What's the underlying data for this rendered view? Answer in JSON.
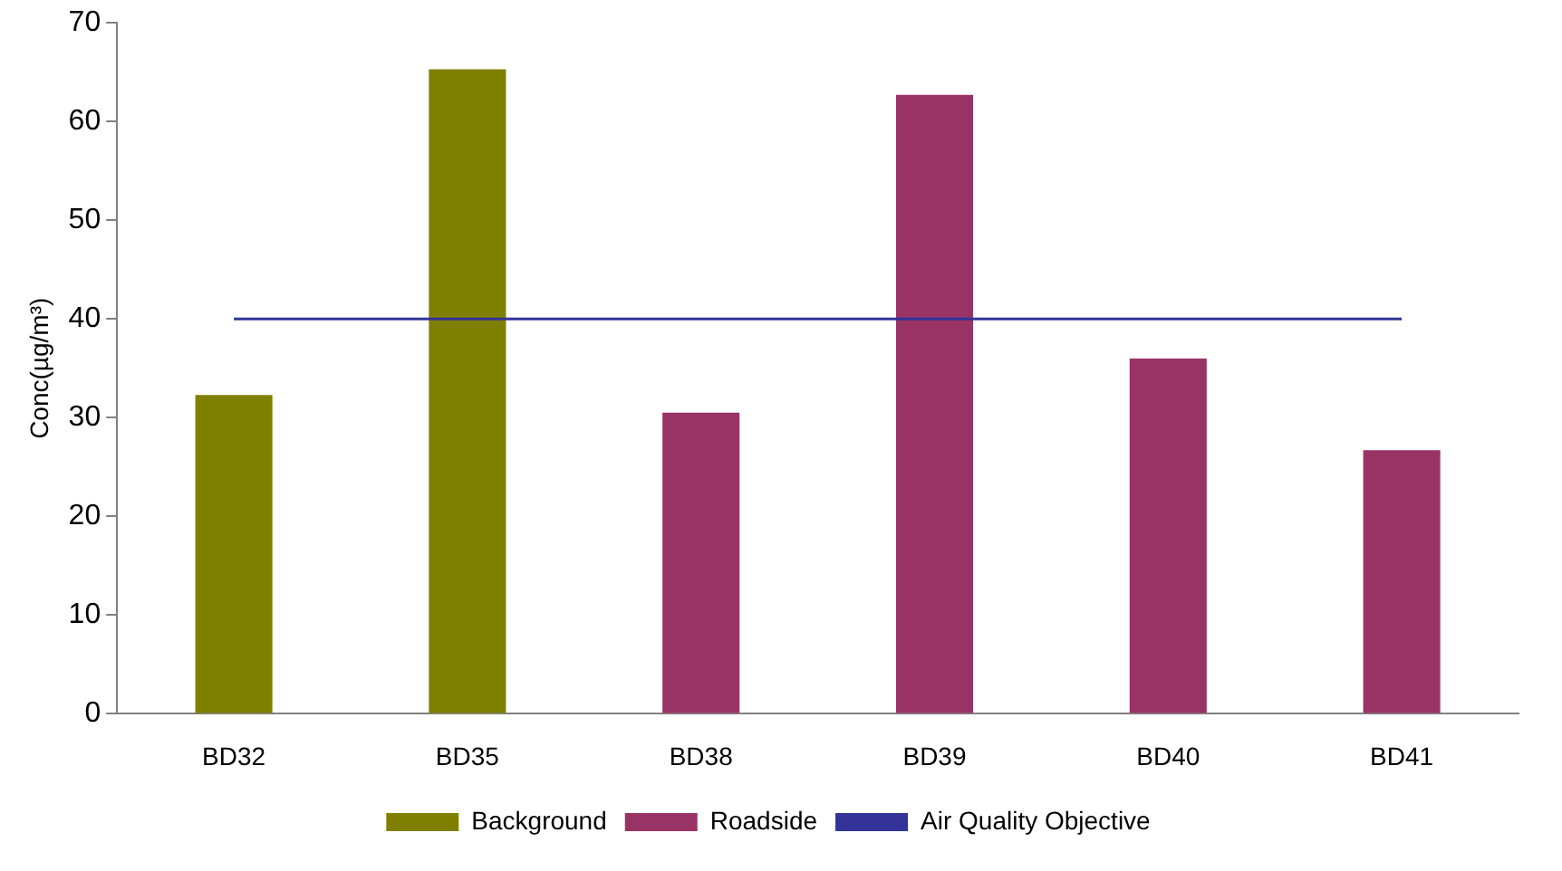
{
  "chart_data": {
    "type": "bar",
    "ylabel": "Conc(µg/m³)",
    "categories": [
      "BD32",
      "BD35",
      "BD38",
      "BD39",
      "BD40",
      "BD41"
    ],
    "series": [
      {
        "name": "Background",
        "color": "#808000",
        "values": [
          32.3,
          65.3,
          null,
          null,
          null,
          null
        ]
      },
      {
        "name": "Roadside",
        "color": "#993366",
        "values": [
          null,
          null,
          30.5,
          62.7,
          36.0,
          26.7
        ]
      },
      {
        "name": "Air Quality Objective",
        "type": "line",
        "color": "#333399",
        "values": [
          40,
          40,
          40,
          40,
          40,
          40
        ]
      }
    ],
    "stacked": true,
    "ylim": [
      0,
      70
    ],
    "yticks": [
      0,
      10,
      20,
      30,
      40,
      50,
      60,
      70
    ],
    "grid": false,
    "legend": "bottom",
    "marker": "none"
  }
}
